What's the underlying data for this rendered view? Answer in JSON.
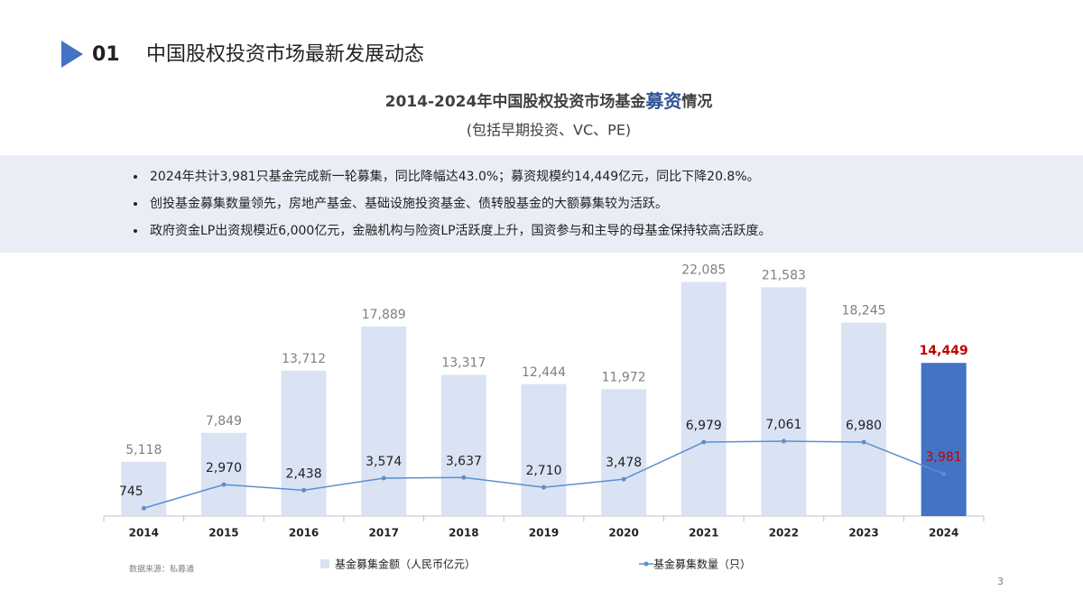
{
  "header": {
    "number": "01",
    "title": "中国股权投资市场最新发展动态"
  },
  "bullets": [
    "2024年共计3,981只基金完成新一轮募集，同比降幅达43.0%；募资规模约14,449亿元，同比下降20.8%。",
    "创投基金募集数量领先，房地产基金、基础设施投资基金、债转股基金的大额募集较为活跃。",
    "政府资金LP出资规模近6,000亿元，金融机构与险资LP活跃度上升，国资参与和主导的母基金保持较高活跃度。"
  ],
  "chart_data": {
    "type": "bar-line",
    "title": [
      "2014-2024年中国股权投资市场基金",
      "募资",
      "情况"
    ],
    "subtitle": "(包括早期投资、VC、PE)",
    "categories": [
      "2014",
      "2015",
      "2016",
      "2017",
      "2018",
      "2019",
      "2020",
      "2021",
      "2022",
      "2023",
      "2024"
    ],
    "ylim": [
      0,
      24000
    ],
    "series": [
      {
        "name": "基金募集金额（人民币亿元）",
        "type": "bar",
        "color": "#dae3f3",
        "colors": [
          "#dae3f3",
          "#dae3f3",
          "#dae3f3",
          "#dae3f3",
          "#dae3f3",
          "#dae3f3",
          "#dae3f3",
          "#dae3f3",
          "#dae3f3",
          "#dae3f3",
          "#4472c4"
        ],
        "label_colors": [
          "#7f7f7f",
          "#7f7f7f",
          "#7f7f7f",
          "#7f7f7f",
          "#7f7f7f",
          "#7f7f7f",
          "#7f7f7f",
          "#7f7f7f",
          "#7f7f7f",
          "#7f7f7f",
          "#c00000"
        ],
        "values": [
          5118,
          7849,
          13712,
          17889,
          13317,
          12444,
          11972,
          22085,
          21583,
          18245,
          14449
        ],
        "value_labels": [
          "5,118",
          "7,849",
          "13,712",
          "17,889",
          "13,317",
          "12,444",
          "11,972",
          "22,085",
          "21,583",
          "18,245",
          "14,449"
        ]
      },
      {
        "name": "基金募集数量（只）",
        "type": "line",
        "color": "#5b8fcf",
        "label_colors": [
          "#222222",
          "#222222",
          "#222222",
          "#222222",
          "#222222",
          "#222222",
          "#222222",
          "#222222",
          "#222222",
          "#222222",
          "#c00000"
        ],
        "values": [
          745,
          2970,
          2438,
          3574,
          3637,
          2710,
          3478,
          6979,
          7061,
          6980,
          3981
        ],
        "value_labels": [
          "745",
          "2,970",
          "2,438",
          "3,574",
          "3,637",
          "2,710",
          "3,478",
          "6,979",
          "7,061",
          "6,980",
          "3,981"
        ]
      }
    ],
    "source": "数据来源：私募通"
  },
  "page_number": "3"
}
